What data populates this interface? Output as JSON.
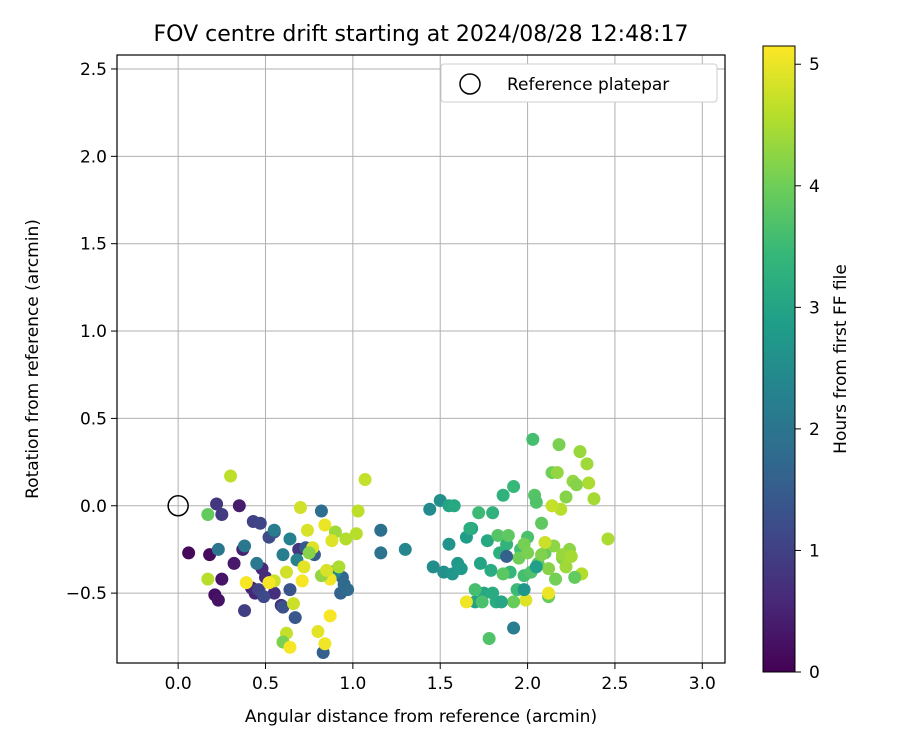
{
  "chart_data": {
    "type": "scatter",
    "title": "FOV centre drift starting at 2024/08/28 12:48:17",
    "xlabel": "Angular distance from reference (arcmin)",
    "ylabel": "Rotation from reference (arcmin)",
    "xlim": [
      -0.35,
      3.13
    ],
    "ylim": [
      -0.9,
      2.58
    ],
    "xticks": [
      0.0,
      0.5,
      1.0,
      1.5,
      2.0,
      2.5,
      3.0
    ],
    "xtick_labels": [
      "0.0",
      "0.5",
      "1.0",
      "1.5",
      "2.0",
      "2.5",
      "3.0"
    ],
    "yticks": [
      -0.5,
      0.0,
      0.5,
      1.0,
      1.5,
      2.0,
      2.5
    ],
    "ytick_labels": [
      "−0.5",
      "0.0",
      "0.5",
      "1.0",
      "1.5",
      "2.0",
      "2.5"
    ],
    "grid": true,
    "legend": {
      "placement": "top-right",
      "entries": [
        "Reference platepar"
      ]
    },
    "reference_point": {
      "x": 0.0,
      "y": 0.0
    },
    "colorbar": {
      "label": "Hours from first FF file",
      "colormap": "viridis",
      "range": [
        0,
        5.15
      ],
      "ticks": [
        0,
        1,
        2,
        3,
        4,
        5
      ],
      "tick_labels": [
        "0",
        "1",
        "2",
        "3",
        "4",
        "5"
      ],
      "colors": [
        "#440154",
        "#482878",
        "#3e4989",
        "#31688e",
        "#26828e",
        "#1f9e89",
        "#35b779",
        "#6ece58",
        "#b5de2b",
        "#fde725"
      ]
    },
    "points": [
      [
        0.06,
        -0.27,
        0.1
      ],
      [
        0.18,
        -0.28,
        0.15
      ],
      [
        0.21,
        -0.51,
        0.2
      ],
      [
        0.23,
        -0.54,
        0.25
      ],
      [
        0.25,
        -0.42,
        0.3
      ],
      [
        0.32,
        -0.33,
        0.35
      ],
      [
        0.35,
        0.0,
        0.4
      ],
      [
        0.37,
        -0.25,
        0.45
      ],
      [
        0.42,
        -0.47,
        0.5
      ],
      [
        0.44,
        -0.5,
        0.55
      ],
      [
        0.48,
        -0.36,
        0.6
      ],
      [
        0.5,
        -0.41,
        0.65
      ],
      [
        0.55,
        -0.5,
        0.7
      ],
      [
        0.59,
        -0.57,
        0.75
      ],
      [
        0.69,
        -0.25,
        0.8
      ],
      [
        0.22,
        0.01,
        0.85
      ],
      [
        0.25,
        -0.05,
        0.9
      ],
      [
        0.38,
        -0.6,
        0.95
      ],
      [
        0.43,
        -0.09,
        1.0
      ],
      [
        0.46,
        -0.48,
        1.05
      ],
      [
        0.47,
        -0.1,
        1.1
      ],
      [
        0.49,
        -0.52,
        1.15
      ],
      [
        0.52,
        -0.18,
        1.2
      ],
      [
        0.55,
        -0.15,
        1.25
      ],
      [
        0.6,
        -0.58,
        1.3
      ],
      [
        0.64,
        -0.48,
        1.35
      ],
      [
        0.67,
        -0.64,
        1.4
      ],
      [
        0.73,
        -0.24,
        1.45
      ],
      [
        0.78,
        -0.28,
        1.5
      ],
      [
        0.83,
        -0.84,
        1.55
      ],
      [
        0.88,
        -0.38,
        1.6
      ],
      [
        0.93,
        -0.5,
        1.65
      ],
      [
        0.94,
        -0.41,
        1.7
      ],
      [
        0.95,
        -0.45,
        1.75
      ],
      [
        0.97,
        -0.48,
        1.8
      ],
      [
        0.82,
        -0.03,
        1.85
      ],
      [
        1.16,
        -0.14,
        1.9
      ],
      [
        1.16,
        -0.27,
        1.95
      ],
      [
        0.23,
        -0.25,
        2.0
      ],
      [
        0.38,
        -0.23,
        2.05
      ],
      [
        0.45,
        -0.33,
        2.1
      ],
      [
        0.55,
        -0.14,
        2.15
      ],
      [
        0.6,
        -0.28,
        2.2
      ],
      [
        0.64,
        -0.19,
        2.25
      ],
      [
        0.68,
        -0.31,
        2.3
      ],
      [
        0.9,
        -0.38,
        2.35
      ],
      [
        1.3,
        -0.25,
        2.4
      ],
      [
        1.44,
        -0.02,
        2.45
      ],
      [
        1.46,
        -0.35,
        2.5
      ],
      [
        1.5,
        0.03,
        2.55
      ],
      [
        1.52,
        -0.38,
        2.6
      ],
      [
        1.55,
        -0.22,
        2.65
      ],
      [
        1.57,
        -0.39,
        2.7
      ],
      [
        1.6,
        -0.33,
        2.75
      ],
      [
        1.62,
        -0.36,
        2.8
      ],
      [
        1.65,
        -0.18,
        2.85
      ],
      [
        1.68,
        -0.13,
        2.9
      ],
      [
        1.7,
        -0.55,
        2.95
      ],
      [
        1.73,
        -0.33,
        3.0
      ],
      [
        1.75,
        -0.5,
        3.05
      ],
      [
        1.77,
        -0.2,
        3.1
      ],
      [
        1.79,
        -0.37,
        3.15
      ],
      [
        1.82,
        -0.55,
        3.2
      ],
      [
        1.84,
        -0.27,
        3.25
      ],
      [
        1.86,
        0.06,
        3.3
      ],
      [
        1.88,
        -0.22,
        3.35
      ],
      [
        1.9,
        -0.38,
        3.4
      ],
      [
        1.92,
        0.11,
        3.45
      ],
      [
        1.94,
        -0.48,
        3.5
      ],
      [
        1.96,
        -0.25,
        3.55
      ],
      [
        1.98,
        -0.4,
        3.6
      ],
      [
        2.0,
        -0.18,
        3.65
      ],
      [
        2.02,
        -0.38,
        3.7
      ],
      [
        2.04,
        0.06,
        3.75
      ],
      [
        2.06,
        -0.33,
        3.8
      ],
      [
        2.08,
        -0.1,
        3.85
      ],
      [
        2.1,
        -0.27,
        3.9
      ],
      [
        2.12,
        -0.52,
        3.95
      ],
      [
        2.14,
        0.19,
        4.0
      ],
      [
        2.16,
        -0.42,
        4.05
      ],
      [
        2.18,
        0.35,
        4.1
      ],
      [
        2.2,
        -0.3,
        4.15
      ],
      [
        2.22,
        0.05,
        4.2
      ],
      [
        2.24,
        -0.25,
        4.25
      ],
      [
        2.26,
        0.14,
        4.3
      ],
      [
        2.3,
        0.31,
        4.35
      ],
      [
        2.34,
        0.24,
        4.4
      ],
      [
        2.38,
        0.04,
        4.45
      ],
      [
        2.46,
        -0.19,
        4.5
      ],
      [
        2.31,
        -0.39,
        4.55
      ],
      [
        0.17,
        -0.42,
        4.6
      ],
      [
        0.3,
        0.17,
        4.65
      ],
      [
        0.62,
        -0.73,
        4.7
      ],
      [
        0.66,
        -0.56,
        4.75
      ],
      [
        0.7,
        -0.01,
        4.8
      ],
      [
        0.74,
        -0.14,
        4.85
      ],
      [
        0.77,
        -0.24,
        4.9
      ],
      [
        0.8,
        -0.72,
        4.95
      ],
      [
        0.84,
        -0.11,
        5.0
      ],
      [
        0.87,
        -0.42,
        5.05
      ],
      [
        0.17,
        -0.05,
        3.9
      ],
      [
        0.6,
        -0.78,
        4.1
      ],
      [
        0.75,
        -0.27,
        4.2
      ],
      [
        0.82,
        -0.4,
        4.3
      ],
      [
        0.9,
        -0.15,
        4.4
      ],
      [
        0.92,
        -0.35,
        4.5
      ],
      [
        0.96,
        -0.19,
        4.55
      ],
      [
        1.02,
        -0.16,
        4.6
      ],
      [
        1.03,
        -0.03,
        4.65
      ],
      [
        1.07,
        0.15,
        4.7
      ],
      [
        0.55,
        -0.43,
        4.75
      ],
      [
        0.62,
        -0.38,
        4.8
      ],
      [
        0.85,
        -0.37,
        4.85
      ],
      [
        0.88,
        -0.2,
        4.9
      ],
      [
        0.72,
        -0.35,
        4.95
      ],
      [
        0.39,
        -0.44,
        5.1
      ],
      [
        0.52,
        -0.44,
        5.1
      ],
      [
        0.64,
        -0.81,
        5.1
      ],
      [
        0.71,
        -0.43,
        5.1
      ],
      [
        0.87,
        -0.63,
        5.1
      ],
      [
        0.84,
        -0.79,
        5.05
      ],
      [
        1.65,
        -0.55,
        5.05
      ],
      [
        2.12,
        -0.5,
        5.0
      ],
      [
        1.99,
        -0.54,
        4.9
      ],
      [
        1.55,
        0.0,
        3.0
      ],
      [
        1.58,
        0.0,
        3.1
      ],
      [
        1.67,
        -0.13,
        3.2
      ],
      [
        1.8,
        -0.04,
        3.3
      ],
      [
        1.72,
        -0.04,
        3.5
      ],
      [
        1.7,
        -0.48,
        3.6
      ],
      [
        1.74,
        -0.55,
        3.65
      ],
      [
        1.78,
        -0.76,
        3.7
      ],
      [
        1.83,
        -0.17,
        3.75
      ],
      [
        1.86,
        -0.39,
        3.8
      ],
      [
        1.89,
        -0.17,
        3.85
      ],
      [
        1.92,
        -0.55,
        3.95
      ],
      [
        1.95,
        -0.3,
        4.0
      ],
      [
        1.98,
        -0.22,
        4.05
      ],
      [
        2.0,
        -0.27,
        4.1
      ],
      [
        2.03,
        0.38,
        3.6
      ],
      [
        2.05,
        0.02,
        3.7
      ],
      [
        2.08,
        -0.28,
        4.15
      ],
      [
        2.12,
        -0.36,
        4.2
      ],
      [
        2.15,
        -0.23,
        4.25
      ],
      [
        2.17,
        0.19,
        4.3
      ],
      [
        2.2,
        -0.28,
        4.35
      ],
      [
        2.22,
        -0.35,
        4.4
      ],
      [
        2.25,
        -0.29,
        4.45
      ],
      [
        2.27,
        -0.41,
        3.9
      ],
      [
        2.28,
        0.12,
        4.2
      ],
      [
        2.35,
        0.13,
        4.5
      ],
      [
        2.19,
        -0.02,
        4.6
      ],
      [
        2.14,
        0.0,
        4.7
      ],
      [
        2.1,
        -0.21,
        4.75
      ],
      [
        1.88,
        -0.29,
        1.6
      ],
      [
        1.92,
        -0.7,
        2.2
      ],
      [
        1.98,
        -0.48,
        2.7
      ],
      [
        2.05,
        -0.35,
        2.9
      ],
      [
        1.85,
        -0.55,
        3.05
      ],
      [
        1.8,
        -0.5,
        3.15
      ]
    ]
  }
}
